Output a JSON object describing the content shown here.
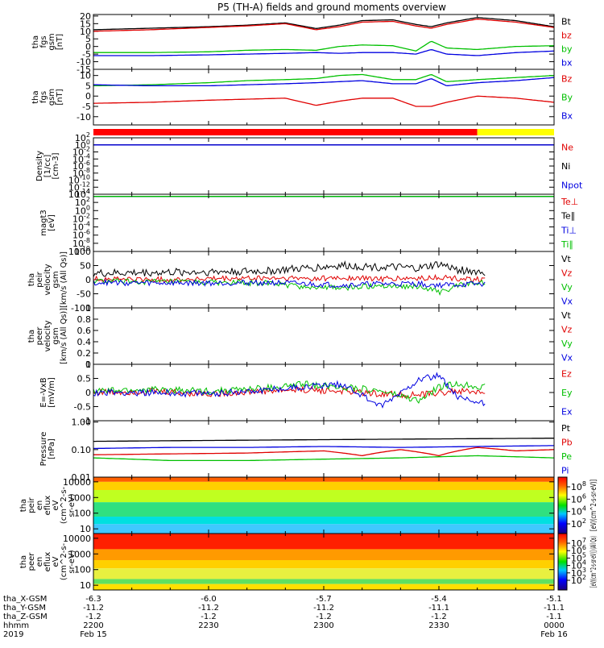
{
  "title": "P5 (TH-A) fields and ground moments overview",
  "chart_data": [
    {
      "type": "line",
      "ylabel": [
        "tha",
        "fgs",
        "gsm",
        "[nT]"
      ],
      "yticks": [
        20,
        15,
        10,
        5,
        0,
        -5,
        -10,
        -15
      ],
      "ylim": [
        -15,
        21
      ],
      "series": [
        {
          "name": "Bt",
          "color": "#000000",
          "x": [
            -6.3,
            -6.15,
            -6.0,
            -5.9,
            -5.8,
            -5.72,
            -5.66,
            -5.6,
            -5.52,
            -5.46,
            -5.42,
            -5.38,
            -5.3,
            -5.2,
            -5.1
          ],
          "y": [
            11,
            12,
            13,
            14,
            15.5,
            11.8,
            14,
            17,
            17.5,
            14.5,
            13,
            15.5,
            19,
            17,
            13
          ]
        },
        {
          "name": "bz",
          "color": "#e00000",
          "x": [
            -6.3,
            -6.15,
            -6.0,
            -5.9,
            -5.8,
            -5.72,
            -5.66,
            -5.6,
            -5.52,
            -5.46,
            -5.42,
            -5.38,
            -5.3,
            -5.2,
            -5.1
          ],
          "y": [
            10,
            11,
            12.5,
            13.5,
            15,
            11,
            13,
            16,
            16.5,
            13.5,
            12,
            14.5,
            18,
            16,
            12.5
          ]
        },
        {
          "name": "by",
          "color": "#00c000",
          "x": [
            -6.3,
            -6.15,
            -6.0,
            -5.9,
            -5.8,
            -5.72,
            -5.66,
            -5.6,
            -5.52,
            -5.46,
            -5.42,
            -5.38,
            -5.3,
            -5.2,
            -5.1
          ],
          "y": [
            -4,
            -4,
            -3.5,
            -2.5,
            -2,
            -2.5,
            0,
            1,
            0.5,
            -3,
            3.5,
            -1,
            -2,
            0,
            0.5
          ]
        },
        {
          "name": "bx",
          "color": "#0000e0",
          "x": [
            -6.3,
            -6.15,
            -6.0,
            -5.9,
            -5.8,
            -5.72,
            -5.66,
            -5.6,
            -5.52,
            -5.46,
            -5.42,
            -5.38,
            -5.3,
            -5.2,
            -5.1
          ],
          "y": [
            -6,
            -6,
            -5.5,
            -5,
            -4.5,
            -4,
            -4.5,
            -4,
            -4,
            -5,
            -2,
            -5,
            -6,
            -4,
            -3
          ]
        }
      ]
    },
    {
      "type": "line",
      "ylabel": [
        "tha",
        "fgs",
        "gsm",
        "[nT]"
      ],
      "yticks": [
        10,
        5,
        0,
        -5,
        -10
      ],
      "ylim": [
        -14,
        13
      ],
      "series": [
        {
          "name": "Bz",
          "color": "#e00000",
          "x": [
            -6.3,
            -6.15,
            -6.0,
            -5.9,
            -5.8,
            -5.72,
            -5.66,
            -5.6,
            -5.52,
            -5.46,
            -5.42,
            -5.38,
            -5.3,
            -5.2,
            -5.1
          ],
          "y": [
            -3.5,
            -3,
            -2,
            -1.5,
            -1,
            -4.5,
            -2.5,
            -1,
            -1,
            -5,
            -5,
            -3,
            0,
            -1,
            -3
          ]
        },
        {
          "name": "By",
          "color": "#00c000",
          "x": [
            -6.3,
            -6.15,
            -6.0,
            -5.9,
            -5.8,
            -5.72,
            -5.66,
            -5.6,
            -5.52,
            -5.46,
            -5.42,
            -5.38,
            -5.3,
            -5.2,
            -5.1
          ],
          "y": [
            5,
            5.5,
            6.5,
            7.5,
            8,
            8.5,
            10,
            10.5,
            8,
            8,
            10.5,
            7,
            8,
            9,
            10
          ]
        },
        {
          "name": "Bx",
          "color": "#0000e0",
          "x": [
            -6.3,
            -6.15,
            -6.0,
            -5.9,
            -5.8,
            -5.72,
            -5.66,
            -5.6,
            -5.52,
            -5.46,
            -5.42,
            -5.38,
            -5.3,
            -5.2,
            -5.1
          ],
          "y": [
            5.5,
            5,
            5,
            5.5,
            6,
            6.5,
            7,
            7.5,
            6,
            6,
            8.5,
            5,
            6.5,
            7.5,
            9
          ]
        }
      ]
    },
    {
      "type": "bar",
      "segments": [
        {
          "x0": -6.3,
          "x1": -5.3,
          "color": "#ff0000"
        },
        {
          "x0": -5.3,
          "x1": -5.1,
          "color": "#ffff00"
        }
      ]
    },
    {
      "type": "line",
      "ylabel": [
        "Density",
        "[1/cc]",
        "[cm-3]"
      ],
      "yscale": "log",
      "ytick_exponents": [
        2,
        0,
        -2,
        -4,
        -6,
        -8,
        -10,
        -12,
        -14
      ],
      "series": [
        {
          "name": "Ne",
          "color": "#e00000",
          "x": [
            -6.3,
            -5.1
          ],
          "y": [
            1,
            1
          ]
        },
        {
          "name": "Ni",
          "color": "#000000",
          "x": [
            -6.3,
            -5.1
          ],
          "y": [
            1,
            1
          ]
        },
        {
          "name": "Npot",
          "color": "#0000e0",
          "x": [
            -6.3,
            -5.1
          ],
          "y": [
            1,
            1
          ]
        }
      ]
    },
    {
      "type": "line",
      "ylabel": [
        "magt3",
        "[eV]"
      ],
      "yscale": "log",
      "ytick_exponents": [
        4,
        2,
        0,
        -2,
        -4,
        -6,
        -8,
        -10
      ],
      "series": [
        {
          "name": "Te⊥",
          "color": "#e00000",
          "x": [
            -6.3,
            -5.1
          ],
          "y": [
            3000,
            3000
          ]
        },
        {
          "name": "Te∥",
          "color": "#000000",
          "x": [
            -6.3,
            -5.1
          ],
          "y": [
            3000,
            3000
          ]
        },
        {
          "name": "Ti⊥",
          "color": "#0000e0",
          "x": [
            -6.3,
            -5.1
          ],
          "y": [
            3000,
            3000
          ]
        },
        {
          "name": "Ti∥",
          "color": "#00c000",
          "x": [
            -6.3,
            -5.1
          ],
          "y": [
            3000,
            3000
          ]
        }
      ]
    },
    {
      "type": "line",
      "ylabel": [
        "tha",
        "peir",
        "velocity",
        "gsm",
        "[km/s (All Qs)]"
      ],
      "yticks": [
        100,
        50,
        0,
        -50,
        -100
      ],
      "ylim": [
        -100,
        100
      ],
      "series": [
        {
          "name": "Vt",
          "color": "#000000",
          "x": [
            -6.3,
            -6.15,
            -6.0,
            -5.85,
            -5.75,
            -5.65,
            -5.55,
            -5.45,
            -5.4,
            -5.35,
            -5.28
          ],
          "y": [
            22,
            25,
            28,
            30,
            40,
            50,
            45,
            40,
            55,
            35,
            25
          ]
        },
        {
          "name": "Vz",
          "color": "#e00000",
          "x": [
            -6.3,
            -6.15,
            -6.0,
            -5.85,
            -5.75,
            -5.65,
            -5.55,
            -5.45,
            -5.4,
            -5.35,
            -5.28
          ],
          "y": [
            3,
            0,
            2,
            5,
            4,
            6,
            3,
            4,
            8,
            3,
            2
          ]
        },
        {
          "name": "Vy",
          "color": "#00c000",
          "x": [
            -6.3,
            -6.15,
            -6.0,
            -5.85,
            -5.75,
            -5.65,
            -5.55,
            -5.45,
            -5.4,
            -5.35,
            -5.28
          ],
          "y": [
            -5,
            -8,
            -10,
            -12,
            -25,
            -30,
            -20,
            -25,
            -45,
            -20,
            -10
          ]
        },
        {
          "name": "Vx",
          "color": "#0000e0",
          "x": [
            -6.3,
            -6.15,
            -6.0,
            -5.85,
            -5.75,
            -5.65,
            -5.55,
            -5.45,
            -5.4,
            -5.35,
            -5.28
          ],
          "y": [
            -10,
            -12,
            -12,
            -10,
            -15,
            -20,
            -15,
            -15,
            -20,
            -18,
            -15
          ]
        }
      ]
    },
    {
      "type": "line",
      "ylabel": [
        "tha",
        "peer",
        "velocity",
        "gsm",
        "[km/s (All Qs)]"
      ],
      "yticks": [
        1.0,
        0.8,
        0.6,
        0.4,
        0.2,
        0.0
      ],
      "ylim": [
        0.0,
        1.0
      ],
      "series": [
        {
          "name": "Vt",
          "color": "#000000",
          "x": [],
          "y": []
        },
        {
          "name": "Vz",
          "color": "#e00000",
          "x": [],
          "y": []
        },
        {
          "name": "Vy",
          "color": "#00c000",
          "x": [],
          "y": []
        },
        {
          "name": "Vx",
          "color": "#0000e0",
          "x": [],
          "y": []
        }
      ]
    },
    {
      "type": "line",
      "ylabel": [
        "E=-VxB",
        "[mV/m]"
      ],
      "yticks": [
        1.0,
        0.5,
        0.0,
        -0.5,
        -1.0
      ],
      "ylim": [
        -1.0,
        1.0
      ],
      "series": [
        {
          "name": "Ez",
          "color": "#e00000",
          "x": [
            -6.3,
            -6.15,
            -6.0,
            -5.85,
            -5.75,
            -5.65,
            -5.55,
            -5.45,
            -5.4,
            -5.35,
            -5.28
          ],
          "y": [
            0.0,
            0.05,
            -0.05,
            0.05,
            0.1,
            0.05,
            -0.05,
            -0.1,
            0.0,
            0.05,
            0.0
          ]
        },
        {
          "name": "Ey",
          "color": "#00c000",
          "x": [
            -6.3,
            -6.15,
            -6.0,
            -5.85,
            -5.75,
            -5.65,
            -5.55,
            -5.45,
            -5.4,
            -5.35,
            -5.28
          ],
          "y": [
            0.05,
            0.1,
            0.05,
            0.15,
            0.3,
            0.2,
            0.05,
            -0.3,
            0.2,
            0.3,
            0.2
          ]
        },
        {
          "name": "Ex",
          "color": "#0000e0",
          "x": [
            -6.3,
            -6.15,
            -6.0,
            -5.85,
            -5.75,
            -5.65,
            -5.55,
            -5.45,
            -5.4,
            -5.35,
            -5.28
          ],
          "y": [
            0.0,
            0.0,
            -0.05,
            0.1,
            0.2,
            0.3,
            -0.5,
            0.5,
            0.6,
            -0.2,
            -0.4
          ]
        }
      ]
    },
    {
      "type": "line",
      "ylabel": [
        "Pressure",
        "[nPa]"
      ],
      "yscale": "log",
      "yticks": [
        1.0,
        0.1,
        0.01
      ],
      "ytick_labels": [
        "1.00",
        "0.10",
        "0.01"
      ],
      "series": [
        {
          "name": "Pt",
          "color": "#000000",
          "x": [
            -6.3,
            -6.1,
            -5.9,
            -5.7,
            -5.5,
            -5.3,
            -5.1
          ],
          "y": [
            0.2,
            0.21,
            0.22,
            0.23,
            0.24,
            0.25,
            0.26
          ]
        },
        {
          "name": "Pb",
          "color": "#e00000",
          "x": [
            -6.3,
            -6.1,
            -5.9,
            -5.7,
            -5.6,
            -5.5,
            -5.4,
            -5.3,
            -5.2,
            -5.1
          ],
          "y": [
            0.065,
            0.07,
            0.075,
            0.09,
            0.06,
            0.1,
            0.06,
            0.12,
            0.09,
            0.1
          ]
        },
        {
          "name": "Pe",
          "color": "#00c000",
          "x": [
            -6.3,
            -6.1,
            -5.9,
            -5.7,
            -5.5,
            -5.3,
            -5.1
          ],
          "y": [
            0.05,
            0.04,
            0.04,
            0.045,
            0.05,
            0.06,
            0.05
          ]
        },
        {
          "name": "Pi",
          "color": "#0000e0",
          "x": [
            -6.3,
            -6.1,
            -5.9,
            -5.7,
            -5.5,
            -5.3,
            -5.1
          ],
          "y": [
            0.11,
            0.12,
            0.12,
            0.13,
            0.12,
            0.13,
            0.14
          ]
        }
      ]
    },
    {
      "type": "heatmap",
      "ylabel": [
        "tha",
        "peir",
        "en",
        "eflux",
        "eV",
        "(cm^2-s-",
        "sr-eV)"
      ],
      "yscale": "log",
      "yticks": [
        10000,
        1000,
        100,
        10
      ],
      "ytick_labels": [
        "10000",
        "1000",
        "100",
        "10"
      ],
      "bands": [
        {
          "ymin": 10000,
          "ymax": 20000,
          "color": "#ff6000"
        },
        {
          "ymin": 3000,
          "ymax": 10000,
          "color": "#ffd000"
        },
        {
          "ymin": 500,
          "ymax": 3000,
          "color": "#c0ff20"
        },
        {
          "ymin": 60,
          "ymax": 500,
          "color": "#30e080"
        },
        {
          "ymin": 20,
          "ymax": 60,
          "color": "#00e0e0"
        },
        {
          "ymin": 5,
          "ymax": 20,
          "color": "#40c8ff"
        }
      ]
    },
    {
      "type": "heatmap",
      "ylabel": [
        "tha",
        "peer",
        "en",
        "eflux",
        "eV",
        "(cm^2-s-",
        "sr-eV)"
      ],
      "yscale": "log",
      "yticks": [
        10000,
        1000,
        100,
        10
      ],
      "ytick_labels": [
        "10000",
        "1000",
        "100",
        "10"
      ],
      "bands": [
        {
          "ymin": 2000,
          "ymax": 20000,
          "color": "#ff2000"
        },
        {
          "ymin": 400,
          "ymax": 2000,
          "color": "#ff9a00"
        },
        {
          "ymin": 120,
          "ymax": 400,
          "color": "#ffd000"
        },
        {
          "ymin": 25,
          "ymax": 120,
          "color": "#e8f040"
        },
        {
          "ymin": 12,
          "ymax": 25,
          "color": "#60e060"
        },
        {
          "ymin": 5,
          "ymax": 12,
          "color": "#ffe000"
        }
      ]
    }
  ],
  "colorbar_1": {
    "label": "[eV/(cm^2-s-sr-eV)]",
    "tick_exponents": [
      8,
      6,
      4,
      2
    ]
  },
  "colorbar_2": {
    "label": "[eV/(cm^2-s-sr-eV)] (All Qs)",
    "tick_exponents": [
      7,
      6,
      5,
      4,
      3,
      2
    ]
  },
  "x_axis": {
    "rows": [
      {
        "label": "tha_X-GSM",
        "values": [
          "-6.3",
          "-6.0",
          "-5.7",
          "-5.4",
          "-5.1"
        ]
      },
      {
        "label": "tha_Y-GSM",
        "values": [
          "-11.2",
          "-11.2",
          "-11.2",
          "-11.1",
          "-11.1"
        ]
      },
      {
        "label": "tha_Z-GSM",
        "values": [
          "-1.2",
          "-1.2",
          "-1.2",
          "-1.2",
          "-1.1"
        ]
      },
      {
        "label": "hhmm",
        "values": [
          "2200",
          "2230",
          "2300",
          "2330",
          "0000"
        ]
      }
    ],
    "year": "2019",
    "date_start": "Feb 15",
    "date_end": "Feb 16"
  }
}
